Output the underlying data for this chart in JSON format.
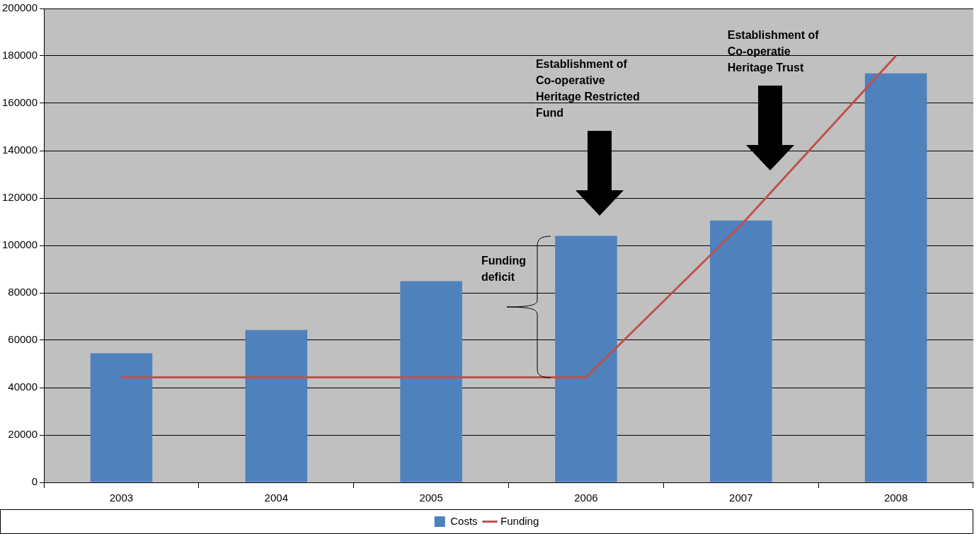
{
  "chart_data": {
    "type": "bar",
    "categories": [
      "2003",
      "2004",
      "2005",
      "2006",
      "2007",
      "2008"
    ],
    "series": [
      {
        "name": "Costs",
        "color": "#4f81bd",
        "values": [
          54500,
          64300,
          84900,
          104000,
          110500,
          172600
        ]
      },
      {
        "name": "Funding",
        "type": "line",
        "color": "#c0504d",
        "values": [
          44300,
          44300,
          44300,
          44300,
          108600,
          180000
        ]
      }
    ],
    "ylim": [
      0,
      200000
    ],
    "yticks": [
      0,
      20000,
      40000,
      60000,
      80000,
      100000,
      120000,
      140000,
      160000,
      180000,
      200000
    ],
    "grid": "y",
    "legend": "bottom",
    "marker": "none",
    "annotations": [
      "Establishment of Co-operative Heritage Restricted Fund",
      "Establishment of Co-operatie Heritage Trust",
      "Funding deficit"
    ]
  }
}
